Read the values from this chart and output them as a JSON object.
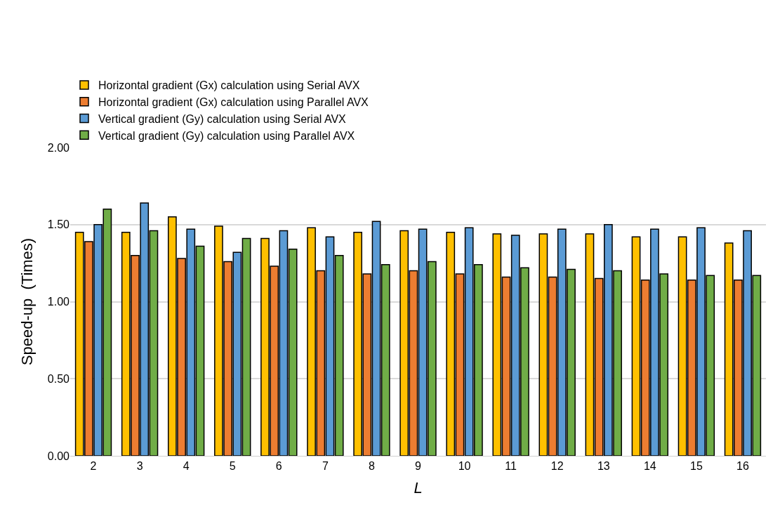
{
  "chart_data": {
    "type": "bar",
    "xlabel": "L",
    "ylabel": "Speed-up  (Times)",
    "categories": [
      "2",
      "3",
      "4",
      "5",
      "6",
      "7",
      "8",
      "9",
      "10",
      "11",
      "12",
      "13",
      "14",
      "15",
      "16"
    ],
    "series": [
      {
        "name": "Horizontal gradient (Gx) calculation using Serial AVX",
        "color": "#ffc000",
        "values": [
          1.45,
          1.45,
          1.55,
          1.49,
          1.41,
          1.48,
          1.45,
          1.46,
          1.45,
          1.44,
          1.44,
          1.44,
          1.42,
          1.42,
          1.38
        ]
      },
      {
        "name": "Horizontal gradient (Gx) calculation using Parallel AVX",
        "color": "#ed7d31",
        "values": [
          1.39,
          1.3,
          1.28,
          1.26,
          1.23,
          1.2,
          1.18,
          1.2,
          1.18,
          1.16,
          1.16,
          1.15,
          1.14,
          1.14,
          1.14
        ]
      },
      {
        "name": "Vertical gradient (Gy) calculation using Serial AVX",
        "color": "#5b9bd5",
        "values": [
          1.5,
          1.64,
          1.47,
          1.32,
          1.46,
          1.42,
          1.52,
          1.47,
          1.48,
          1.43,
          1.47,
          1.5,
          1.47,
          1.48,
          1.46
        ]
      },
      {
        "name": "Vertical gradient (Gy) calculation using Parallel AVX",
        "color": "#70ad47",
        "values": [
          1.6,
          1.46,
          1.36,
          1.41,
          1.34,
          1.3,
          1.24,
          1.26,
          1.24,
          1.22,
          1.21,
          1.2,
          1.18,
          1.17,
          1.17
        ]
      }
    ],
    "ylim": [
      0,
      2
    ],
    "yticks": [
      {
        "value": 0,
        "label": "0.00"
      },
      {
        "value": 0.5,
        "label": "0.50"
      },
      {
        "value": 1,
        "label": "1.00"
      },
      {
        "value": 1.5,
        "label": "1.50"
      },
      {
        "value": 2,
        "label": "2.00"
      }
    ],
    "grid": "y",
    "legend": "top left"
  }
}
